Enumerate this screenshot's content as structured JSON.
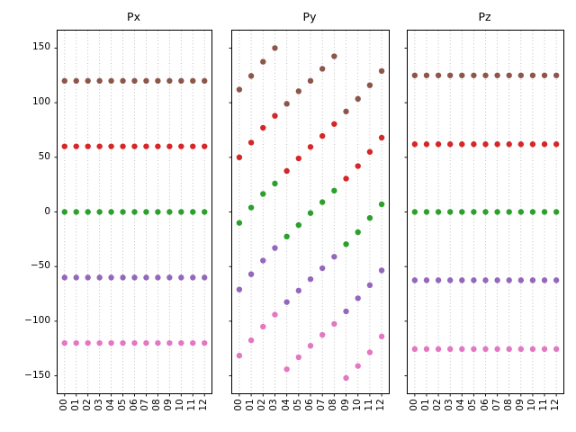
{
  "figure": {
    "background": "#ffffff"
  },
  "axes_style": {
    "grid": "vertical-dotted",
    "grid_color": "#b0b0b0",
    "spine_color": "#000000",
    "tick_color": "#000000",
    "legend": "none"
  },
  "chart_data": [
    {
      "type": "scatter",
      "title": "Px",
      "xlabel": "",
      "ylabel": "",
      "x": [
        0,
        1,
        2,
        3,
        4,
        5,
        6,
        7,
        8,
        9,
        10,
        11,
        12
      ],
      "x_tick_labels": [
        "00",
        "01",
        "02",
        "03",
        "04",
        "05",
        "06",
        "07",
        "08",
        "09",
        "10",
        "11",
        "12"
      ],
      "xlim": [
        -0.6,
        12.6
      ],
      "ylim": [
        -166,
        166
      ],
      "ytick_values": [
        150,
        100,
        50,
        0,
        -50,
        -100,
        -150
      ],
      "ytick_labels": [
        "150",
        "100",
        "50",
        "0",
        "−50",
        "−100",
        "−150"
      ],
      "show_ytick_labels": true,
      "series": [
        {
          "name": "brown",
          "color": "#8c564b",
          "values": [
            120,
            120,
            120,
            120,
            120,
            120,
            120,
            120,
            120,
            120,
            120,
            120,
            120
          ]
        },
        {
          "name": "red",
          "color": "#d62728",
          "values": [
            60,
            60,
            60,
            60,
            60,
            60,
            60,
            60,
            60,
            60,
            60,
            60,
            60
          ]
        },
        {
          "name": "green",
          "color": "#2ca02c",
          "values": [
            0,
            0,
            0,
            0,
            0,
            0,
            0,
            0,
            0,
            0,
            0,
            0,
            0
          ]
        },
        {
          "name": "purple",
          "color": "#9467bd",
          "values": [
            -60,
            -60,
            -60,
            -60,
            -60,
            -60,
            -60,
            -60,
            -60,
            -60,
            -60,
            -60,
            -60
          ]
        },
        {
          "name": "pink",
          "color": "#e377c2",
          "values": [
            -120,
            -120,
            -120,
            -120,
            -120,
            -120,
            -120,
            -120,
            -120,
            -120,
            -120,
            -120,
            -120
          ]
        }
      ]
    },
    {
      "type": "scatter",
      "title": "Py",
      "xlabel": "",
      "ylabel": "",
      "x": [
        0,
        1,
        2,
        3,
        4,
        5,
        6,
        7,
        8,
        9,
        10,
        11,
        12
      ],
      "x_tick_labels": [
        "00",
        "01",
        "02",
        "03",
        "04",
        "05",
        "06",
        "07",
        "08",
        "09",
        "10",
        "11",
        "12"
      ],
      "xlim": [
        -0.6,
        12.6
      ],
      "ylim": [
        -166,
        166
      ],
      "ytick_values": [
        150,
        100,
        50,
        0,
        -50,
        -100,
        -150
      ],
      "ytick_labels": [
        "150",
        "100",
        "50",
        "0",
        "−50",
        "−100",
        "−150"
      ],
      "show_ytick_labels": false,
      "series": [
        {
          "name": "brown",
          "color": "#8c564b",
          "values": [
            112,
            124.5,
            137.5,
            150,
            99,
            110.5,
            120,
            131,
            142.5,
            92,
            103.5,
            116,
            129
          ]
        },
        {
          "name": "red",
          "color": "#d62728",
          "values": [
            50,
            63.5,
            77,
            88,
            37.5,
            49,
            59.5,
            69.5,
            80.5,
            30.5,
            42,
            55,
            68
          ]
        },
        {
          "name": "green",
          "color": "#2ca02c",
          "values": [
            -10,
            4,
            16.5,
            26,
            -22.5,
            -12,
            -1,
            9,
            19.5,
            -29.5,
            -18.5,
            -5.5,
            7
          ]
        },
        {
          "name": "purple",
          "color": "#9467bd",
          "values": [
            -71,
            -57,
            -44.5,
            -33,
            -82.5,
            -72,
            -61.5,
            -51.5,
            -41,
            -91,
            -79,
            -67,
            -53.5
          ]
        },
        {
          "name": "pink",
          "color": "#e377c2",
          "values": [
            -131.5,
            -117.5,
            -105,
            -94,
            -144,
            -133,
            -122.5,
            -112.5,
            -102.5,
            -152,
            -141,
            -128.5,
            -114
          ]
        }
      ]
    },
    {
      "type": "scatter",
      "title": "Pz",
      "xlabel": "",
      "ylabel": "",
      "x": [
        0,
        1,
        2,
        3,
        4,
        5,
        6,
        7,
        8,
        9,
        10,
        11,
        12
      ],
      "x_tick_labels": [
        "00",
        "01",
        "02",
        "03",
        "04",
        "05",
        "06",
        "07",
        "08",
        "09",
        "10",
        "11",
        "12"
      ],
      "xlim": [
        -0.6,
        12.6
      ],
      "ylim": [
        -166,
        166
      ],
      "ytick_values": [
        150,
        100,
        50,
        0,
        -50,
        -100,
        -150
      ],
      "ytick_labels": [
        "150",
        "100",
        "50",
        "0",
        "−50",
        "−100",
        "−150"
      ],
      "show_ytick_labels": false,
      "series": [
        {
          "name": "brown",
          "color": "#8c564b",
          "values": [
            125,
            125,
            125,
            125,
            125,
            125,
            125,
            125,
            125,
            125,
            125,
            125,
            125
          ]
        },
        {
          "name": "red",
          "color": "#d62728",
          "values": [
            62,
            62,
            62,
            62,
            62,
            62,
            62,
            62,
            62,
            62,
            62,
            62,
            62
          ]
        },
        {
          "name": "green",
          "color": "#2ca02c",
          "values": [
            0,
            0,
            0,
            0,
            0,
            0,
            0,
            0,
            0,
            0,
            0,
            0,
            0
          ]
        },
        {
          "name": "purple",
          "color": "#9467bd",
          "values": [
            -62.5,
            -62.5,
            -62.5,
            -62.5,
            -62.5,
            -62.5,
            -62.5,
            -62.5,
            -62.5,
            -62.5,
            -62.5,
            -62.5,
            -62.5
          ]
        },
        {
          "name": "pink",
          "color": "#e377c2",
          "values": [
            -125.5,
            -125.5,
            -125.5,
            -125.5,
            -125.5,
            -125.5,
            -125.5,
            -125.5,
            -125.5,
            -125.5,
            -125.5,
            -125.5,
            -125.5
          ]
        }
      ]
    }
  ]
}
